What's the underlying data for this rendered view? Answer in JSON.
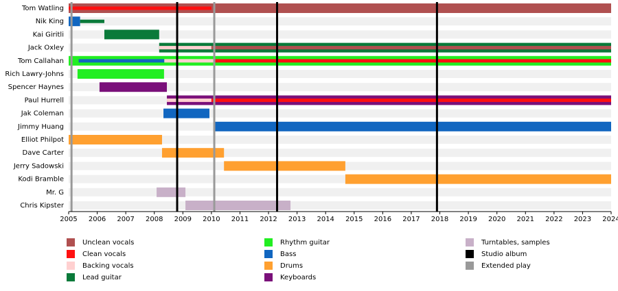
{
  "chart_data": {
    "type": "timeline",
    "xlim": [
      2005,
      2024
    ],
    "xticks": [
      2005,
      2006,
      2007,
      2008,
      2009,
      2010,
      2011,
      2012,
      2013,
      2014,
      2015,
      2016,
      2017,
      2018,
      2019,
      2020,
      2021,
      2022,
      2023,
      2024
    ],
    "roles": [
      {
        "name": "Unclean vocals",
        "color": "#b05050"
      },
      {
        "name": "Clean vocals",
        "color": "#ff1010"
      },
      {
        "name": "Backing vocals",
        "color": "#ffd0d0"
      },
      {
        "name": "Lead guitar",
        "color": "#0a7a3a"
      },
      {
        "name": "Rhythm guitar",
        "color": "#22ee22"
      },
      {
        "name": "Bass",
        "color": "#1166c0"
      },
      {
        "name": "Drums",
        "color": "#ffa030"
      },
      {
        "name": "Keyboards",
        "color": "#7a107a"
      },
      {
        "name": "Turntables, samples",
        "color": "#c8b0c8"
      }
    ],
    "events": [
      {
        "name": "Studio album",
        "color": "#000000",
        "x": [
          2008.8,
          2012.3,
          2017.9
        ]
      },
      {
        "name": "Extended play",
        "color": "#999999",
        "x": [
          2005.1,
          2010.1
        ]
      }
    ],
    "members": [
      {
        "name": "Tom Watling",
        "spans": [
          {
            "role": "Unclean vocals",
            "start": 2005,
            "end": 2024
          },
          {
            "role": "Clean vocals",
            "start": 2005,
            "end": 2010
          }
        ]
      },
      {
        "name": "Nik King",
        "spans": [
          {
            "role": "Bass",
            "start": 2005,
            "end": 2005.4
          },
          {
            "role": "Lead guitar",
            "start": 2005.4,
            "end": 2006.25
          }
        ]
      },
      {
        "name": "Kai Giritli",
        "spans": [
          {
            "role": "Lead guitar",
            "start": 2006.25,
            "end": 2008.17
          }
        ]
      },
      {
        "name": "Jack Oxley",
        "spans": [
          {
            "role": "Lead guitar",
            "start": 2008.17,
            "end": 2024
          },
          {
            "role": "Backing vocals",
            "start": 2008.17,
            "end": 2010
          },
          {
            "role": "Unclean vocals",
            "start": 2010,
            "end": 2024
          }
        ]
      },
      {
        "name": "Tom Callahan",
        "spans": [
          {
            "role": "Rhythm guitar",
            "start": 2005,
            "end": 2024
          },
          {
            "role": "Bass",
            "start": 2005.35,
            "end": 2008.35
          },
          {
            "role": "Backing vocals",
            "start": 2008.35,
            "end": 2010.1
          },
          {
            "role": "Clean vocals",
            "start": 2010.1,
            "end": 2024
          }
        ]
      },
      {
        "name": "Rich Lawry-Johns",
        "spans": [
          {
            "role": "Rhythm guitar",
            "start": 2005.31,
            "end": 2008.34
          }
        ]
      },
      {
        "name": "Spencer Haynes",
        "spans": [
          {
            "role": "Keyboards",
            "start": 2006.08,
            "end": 2008.44
          }
        ]
      },
      {
        "name": "Paul Hurrell",
        "spans": [
          {
            "role": "Keyboards",
            "start": 2008.44,
            "end": 2024
          },
          {
            "role": "Backing vocals",
            "start": 2008.44,
            "end": 2010
          },
          {
            "role": "Clean vocals",
            "start": 2010,
            "end": 2024
          }
        ]
      },
      {
        "name": "Jak Coleman",
        "spans": [
          {
            "role": "Bass",
            "start": 2008.32,
            "end": 2009.93
          }
        ]
      },
      {
        "name": "Jimmy Huang",
        "spans": [
          {
            "role": "Bass",
            "start": 2010.07,
            "end": 2024
          }
        ]
      },
      {
        "name": "Elliot Philpot",
        "spans": [
          {
            "role": "Drums",
            "start": 2005,
            "end": 2008.27
          }
        ]
      },
      {
        "name": "Dave Carter",
        "spans": [
          {
            "role": "Drums",
            "start": 2008.27,
            "end": 2010.44
          }
        ]
      },
      {
        "name": "Jerry Sadowski",
        "spans": [
          {
            "role": "Drums",
            "start": 2010.44,
            "end": 2014.69
          }
        ]
      },
      {
        "name": "Kodi Bramble",
        "spans": [
          {
            "role": "Drums",
            "start": 2014.69,
            "end": 2024
          }
        ]
      },
      {
        "name": "Mr. G",
        "spans": [
          {
            "role": "Turntables, samples",
            "start": 2008.08,
            "end": 2009.09
          }
        ]
      },
      {
        "name": "Chris Kipster",
        "spans": [
          {
            "role": "Turntables, samples",
            "start": 2009.09,
            "end": 2012.77
          }
        ]
      }
    ]
  }
}
